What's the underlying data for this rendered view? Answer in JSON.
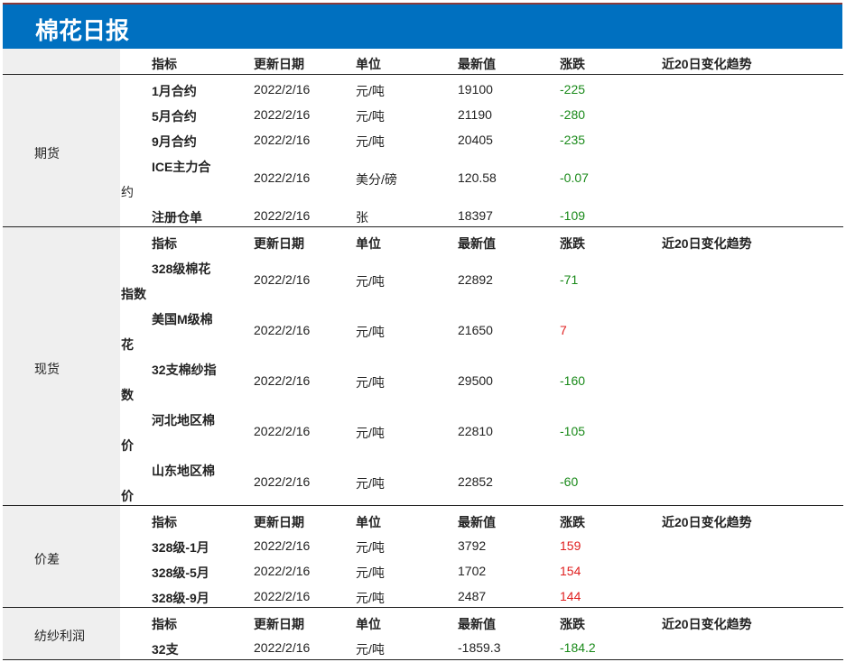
{
  "title": "棉花日报",
  "header": {
    "indicator": "指标",
    "date": "更新日期",
    "unit": "单位",
    "latest": "最新值",
    "change": "涨跌",
    "trend": "近20日变化趋势"
  },
  "sections": {
    "futures": {
      "label": "期货",
      "rows": [
        {
          "name": "1月合约",
          "date": "2022/2/16",
          "unit": "元/吨",
          "latest": "19100",
          "change": "-225"
        },
        {
          "name": "5月合约",
          "date": "2022/2/16",
          "unit": "元/吨",
          "latest": "21190",
          "change": "-280"
        },
        {
          "name": "9月合约",
          "date": "2022/2/16",
          "unit": "元/吨",
          "latest": "20405",
          "change": "-235"
        },
        {
          "name_line1": "ICE主力合",
          "name_line2": "约",
          "date": "2022/2/16",
          "unit": "美分/磅",
          "latest": "120.58",
          "change": "-0.07"
        },
        {
          "name": "注册仓单",
          "date": "2022/2/16",
          "unit": "张",
          "latest": "18397",
          "change": "-109"
        }
      ]
    },
    "spot": {
      "label": "现货",
      "rows": [
        {
          "name_line1": "328级棉花",
          "name_line2": "指数",
          "date": "2022/2/16",
          "unit": "元/吨",
          "latest": "22892",
          "change": "-71"
        },
        {
          "name_line1": "美国M级棉",
          "name_line2": "花",
          "date": "2022/2/16",
          "unit": "元/吨",
          "latest": "21650",
          "change": "7"
        },
        {
          "name_line1": "32支棉纱指",
          "name_line2": "数",
          "date": "2022/2/16",
          "unit": "元/吨",
          "latest": "29500",
          "change": "-160"
        },
        {
          "name_line1": "河北地区棉",
          "name_line2": "价",
          "date": "2022/2/16",
          "unit": "元/吨",
          "latest": "22810",
          "change": "-105"
        },
        {
          "name_line1": "山东地区棉",
          "name_line2": "价",
          "date": "2022/2/16",
          "unit": "元/吨",
          "latest": "22852",
          "change": "-60"
        }
      ]
    },
    "spread": {
      "label": "价差",
      "rows": [
        {
          "name": "328级-1月",
          "date": "2022/2/16",
          "unit": "元/吨",
          "latest": "3792",
          "change": "159"
        },
        {
          "name": "328级-5月",
          "date": "2022/2/16",
          "unit": "元/吨",
          "latest": "1702",
          "change": "154"
        },
        {
          "name": "328级-9月",
          "date": "2022/2/16",
          "unit": "元/吨",
          "latest": "2487",
          "change": "144"
        }
      ]
    },
    "profit": {
      "label": "纺纱利润",
      "rows": [
        {
          "name": "32支",
          "date": "2022/2/16",
          "unit": "元/吨",
          "latest": "-1859.3",
          "change": "-184.2"
        }
      ]
    }
  },
  "colors": {
    "header_bg": "#0070c0",
    "up": "#e02020",
    "down": "#1a8a1a",
    "label_bg": "#efefef"
  }
}
